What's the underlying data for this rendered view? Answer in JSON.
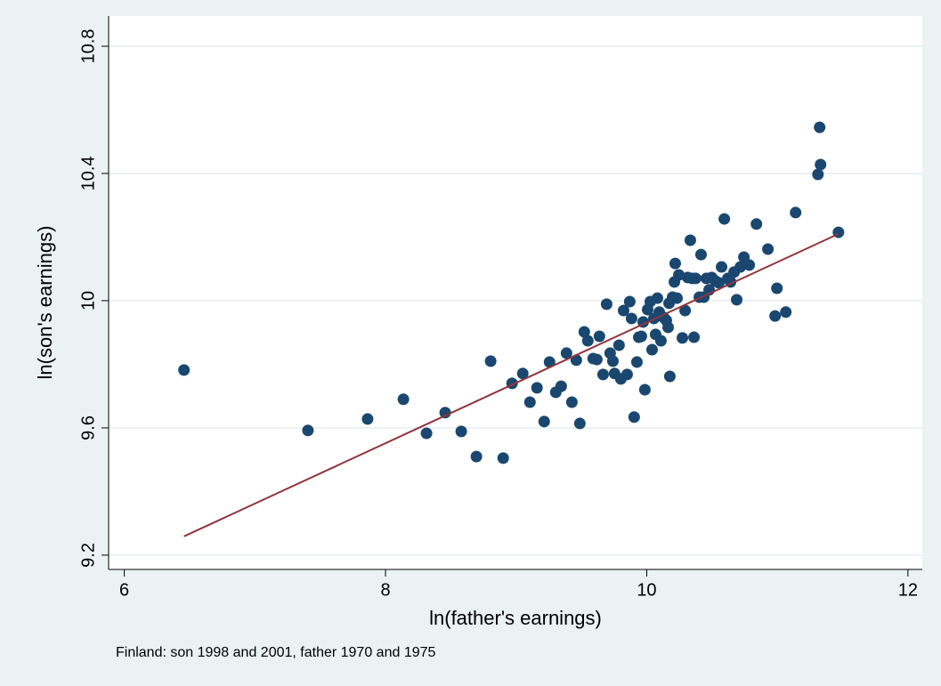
{
  "chart_data": {
    "type": "scatter",
    "x_label": "ln(father's earnings)",
    "y_label": "ln(son's earnings)",
    "note": "Finland: son 1998 and 2001, father 1970 and 1975",
    "xlim": [
      5.88,
      12.11
    ],
    "ylim": [
      9.155,
      10.895
    ],
    "xticks": [
      6,
      8,
      10,
      12
    ],
    "yticks": [
      9.2,
      9.6,
      10,
      10.4,
      10.8
    ],
    "grid": true,
    "series": [
      {
        "color": "#1a476f",
        "x": [
          6.457,
          7.406,
          7.863,
          8.137,
          8.314,
          8.457,
          8.58,
          8.696,
          8.805,
          8.901,
          8.969,
          9.051,
          9.106,
          9.16,
          9.215,
          9.256,
          9.304,
          9.345,
          9.386,
          9.427,
          9.461,
          9.488,
          9.522,
          9.549,
          9.59,
          9.618,
          9.638,
          9.666,
          9.693,
          9.72,
          9.741,
          9.754,
          9.788,
          9.802,
          9.823,
          9.85,
          9.87,
          9.884,
          9.904,
          9.925,
          9.939,
          9.959,
          9.973,
          9.986,
          10.007,
          10.027,
          10.041,
          10.055,
          10.068,
          10.082,
          10.096,
          10.109,
          10.13,
          10.15,
          10.164,
          10.171,
          10.177,
          10.198,
          10.212,
          10.218,
          10.232,
          10.246,
          10.273,
          10.294,
          10.314,
          10.334,
          10.348,
          10.362,
          10.375,
          10.403,
          10.416,
          10.437,
          10.457,
          10.478,
          10.498,
          10.526,
          10.553,
          10.573,
          10.594,
          10.621,
          10.642,
          10.669,
          10.689,
          10.717,
          10.744,
          10.785,
          10.84,
          10.928,
          10.983,
          10.997,
          11.065,
          11.14,
          11.311,
          11.324,
          11.331,
          11.468
        ],
        "values": [
          9.782,
          9.592,
          9.628,
          9.69,
          9.583,
          9.648,
          9.589,
          9.51,
          9.81,
          9.505,
          9.74,
          9.771,
          9.681,
          9.726,
          9.62,
          9.807,
          9.712,
          9.731,
          9.835,
          9.681,
          9.813,
          9.614,
          9.902,
          9.874,
          9.818,
          9.815,
          9.888,
          9.768,
          9.989,
          9.835,
          9.81,
          9.771,
          9.86,
          9.754,
          9.969,
          9.768,
          9.997,
          9.944,
          9.634,
          9.807,
          9.885,
          9.888,
          9.933,
          9.72,
          9.972,
          9.997,
          9.846,
          9.944,
          9.894,
          10.008,
          9.964,
          9.874,
          9.947,
          9.938,
          9.916,
          9.992,
          9.762,
          10.011,
          10.059,
          10.117,
          10.008,
          10.081,
          9.883,
          9.969,
          10.073,
          10.19,
          10.07,
          9.885,
          10.07,
          10.011,
          10.145,
          10.011,
          10.07,
          10.034,
          10.073,
          10.062,
          10.056,
          10.106,
          10.257,
          10.07,
          10.059,
          10.09,
          10.003,
          10.106,
          10.137,
          10.112,
          10.241,
          10.162,
          9.952,
          10.039,
          9.964,
          10.277,
          10.397,
          10.545,
          10.428,
          10.215
        ]
      }
    ],
    "fit_line": {
      "color": "#90353b",
      "x": [
        6.457,
        11.468
      ],
      "values": [
        9.259,
        10.21
      ]
    }
  }
}
